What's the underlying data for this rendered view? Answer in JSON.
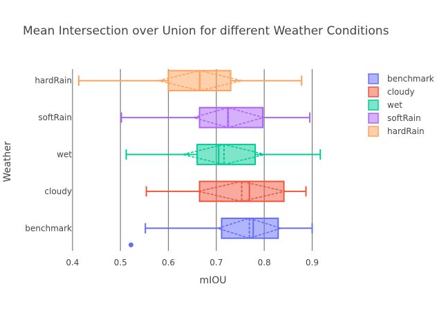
{
  "chart_data": {
    "type": "box",
    "orientation": "horizontal",
    "title": "Mean Intersection over Union for different Weather Conditions",
    "xlabel": "mIOU",
    "ylabel": "Weather",
    "xlim": [
      0.38,
      0.97
    ],
    "x_ticks": [
      0.4,
      0.5,
      0.6,
      0.7,
      0.8,
      0.9
    ],
    "x_tick_labels": [
      "0.4",
      "0.5",
      "0.6",
      "0.7",
      "0.8",
      "0.9"
    ],
    "grid": "vertical",
    "legend_position": "top-right",
    "box_mean": "sd",
    "series": [
      {
        "name": "benchmark",
        "color": "#636efa",
        "min": 0.552,
        "q1": 0.711,
        "median": 0.777,
        "q3": 0.829,
        "max": 0.9,
        "mean": 0.769,
        "sd": 0.066,
        "outliers": [
          0.522
        ]
      },
      {
        "name": "cloudy",
        "color": "#ef553b",
        "min": 0.554,
        "q1": 0.665,
        "median": 0.769,
        "q3": 0.841,
        "max": 0.887,
        "mean": 0.753,
        "sd": 0.09,
        "outliers": []
      },
      {
        "name": "wet",
        "color": "#00cc96",
        "min": 0.512,
        "q1": 0.66,
        "median": 0.705,
        "q3": 0.781,
        "max": 0.917,
        "mean": 0.716,
        "sd": 0.086,
        "outliers": []
      },
      {
        "name": "softRain",
        "color": "#ab63fa",
        "min": 0.502,
        "q1": 0.665,
        "median": 0.724,
        "q3": 0.797,
        "max": 0.895,
        "mean": 0.725,
        "sd": 0.073,
        "outliers": []
      },
      {
        "name": "hardRain",
        "color": "#ffa15a",
        "min": 0.413,
        "q1": 0.6,
        "median": 0.665,
        "q3": 0.73,
        "max": 0.878,
        "mean": 0.666,
        "sd": 0.087,
        "outliers": []
      }
    ]
  }
}
